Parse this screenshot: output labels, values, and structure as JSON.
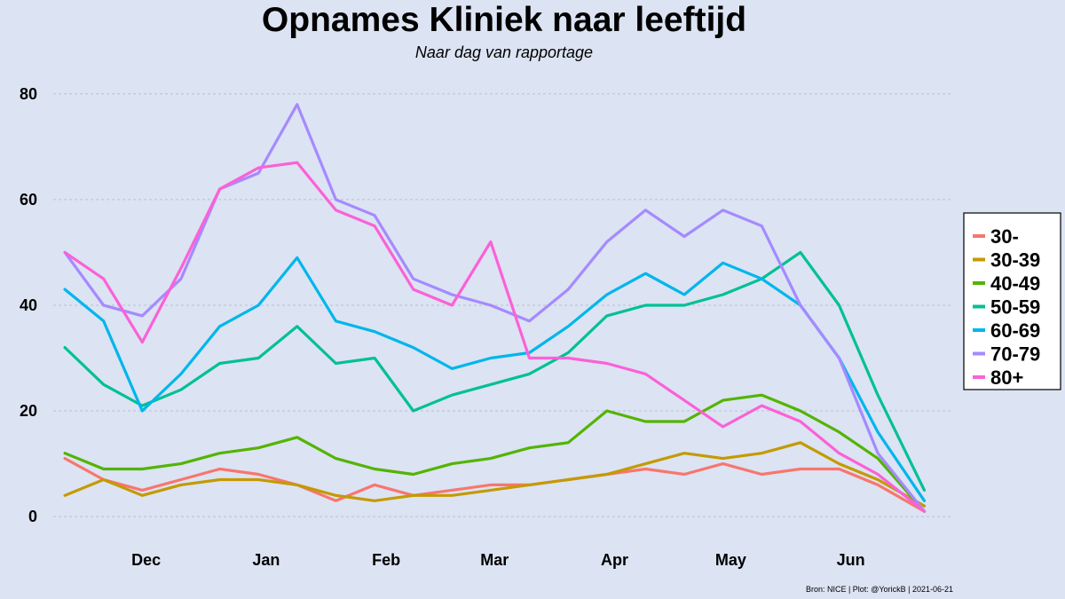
{
  "chart_data": {
    "type": "line",
    "title": "Opnames Kliniek naar leeftijd",
    "subtitle": "Naar dag van rapportage",
    "caption": "Bron: NICE | Plot: @YorickB  |  2021-06-21",
    "x_axis": {
      "type": "date",
      "range": [
        "2020-11-07",
        "2021-06-27"
      ],
      "ticks": [
        {
          "label": "Dec",
          "date": "2020-12-01"
        },
        {
          "label": "Jan",
          "date": "2021-01-01"
        },
        {
          "label": "Feb",
          "date": "2021-02-01"
        },
        {
          "label": "Mar",
          "date": "2021-03-01"
        },
        {
          "label": "Apr",
          "date": "2021-04-01"
        },
        {
          "label": "May",
          "date": "2021-05-01"
        },
        {
          "label": "Jun",
          "date": "2021-06-01"
        }
      ]
    },
    "y_axis": {
      "range": [
        -3,
        85
      ],
      "ticks": [
        0,
        20,
        40,
        60,
        80
      ]
    },
    "grid": {
      "horizontal": true,
      "vertical": false
    },
    "legend": {
      "position": "right"
    },
    "x_dates": [
      "2020-11-10",
      "2020-11-20",
      "2020-11-30",
      "2020-12-10",
      "2020-12-20",
      "2020-12-30",
      "2021-01-09",
      "2021-01-19",
      "2021-01-29",
      "2021-02-08",
      "2021-02-18",
      "2021-02-28",
      "2021-03-10",
      "2021-03-20",
      "2021-03-30",
      "2021-04-09",
      "2021-04-19",
      "2021-04-29",
      "2021-05-09",
      "2021-05-19",
      "2021-05-29",
      "2021-06-08",
      "2021-06-20"
    ],
    "series": [
      {
        "name": "30-",
        "color": "#F8766D",
        "values": [
          11,
          7,
          5,
          7,
          9,
          8,
          6,
          3,
          6,
          4,
          5,
          6,
          6,
          7,
          8,
          9,
          8,
          10,
          8,
          9,
          9,
          6,
          1
        ]
      },
      {
        "name": "30-39",
        "color": "#C49A00",
        "values": [
          4,
          7,
          4,
          6,
          7,
          7,
          6,
          4,
          3,
          4,
          4,
          5,
          6,
          7,
          8,
          10,
          12,
          11,
          12,
          14,
          10,
          7,
          2
        ]
      },
      {
        "name": "40-49",
        "color": "#53B400",
        "values": [
          12,
          9,
          9,
          10,
          12,
          13,
          15,
          11,
          9,
          8,
          10,
          11,
          13,
          14,
          20,
          18,
          18,
          22,
          23,
          20,
          16,
          11,
          1
        ]
      },
      {
        "name": "50-59",
        "color": "#00C094",
        "values": [
          32,
          25,
          21,
          24,
          29,
          30,
          36,
          29,
          30,
          20,
          23,
          25,
          27,
          31,
          38,
          40,
          40,
          42,
          45,
          50,
          40,
          23,
          5
        ]
      },
      {
        "name": "60-69",
        "color": "#00B6EB",
        "values": [
          43,
          37,
          20,
          27,
          36,
          40,
          49,
          37,
          35,
          32,
          28,
          30,
          31,
          36,
          42,
          46,
          42,
          48,
          45,
          40,
          30,
          16,
          3
        ]
      },
      {
        "name": "70-79",
        "color": "#A58AFF",
        "values": [
          50,
          40,
          38,
          45,
          62,
          65,
          78,
          60,
          57,
          45,
          42,
          40,
          37,
          43,
          52,
          58,
          53,
          58,
          55,
          40,
          30,
          12,
          1
        ]
      },
      {
        "name": "80+",
        "color": "#FB61D7",
        "values": [
          50,
          45,
          33,
          47,
          62,
          66,
          67,
          58,
          55,
          43,
          40,
          52,
          30,
          30,
          29,
          27,
          22,
          17,
          21,
          18,
          12,
          8,
          1
        ]
      }
    ]
  }
}
